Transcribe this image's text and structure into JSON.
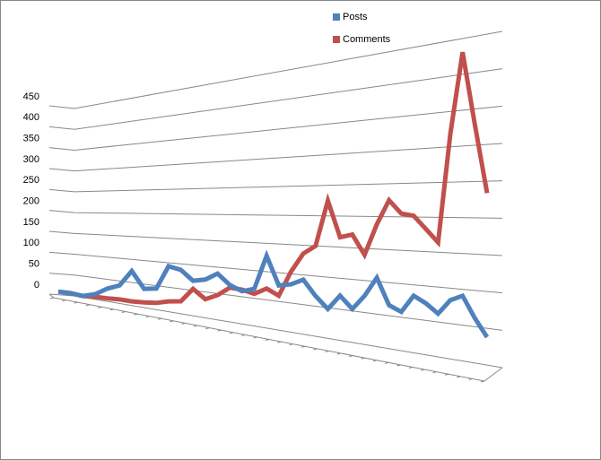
{
  "chart_data": {
    "type": "line",
    "categories": [
      null,
      null,
      null,
      null,
      null,
      null,
      null,
      null,
      null,
      null,
      null,
      null,
      null,
      null,
      null,
      null,
      null,
      null,
      null,
      null,
      null,
      null,
      null,
      null,
      null,
      null,
      null,
      null,
      null,
      null,
      null,
      null,
      null,
      null,
      null,
      null
    ],
    "series": [
      {
        "name": "Posts",
        "color": "#4f81bd",
        "values": [
          4,
          5,
          3,
          12,
          29,
          40,
          75,
          40,
          44,
          93,
          88,
          69,
          74,
          88,
          69,
          60,
          67,
          128,
          78,
          82,
          92,
          67,
          48,
          72,
          53,
          76,
          106,
          66,
          58,
          84,
          75,
          62,
          83,
          91,
          62,
          38
        ]
      },
      {
        "name": "Comments",
        "color": "#c0504d",
        "values": [
          4,
          5,
          3,
          6,
          7,
          9,
          9,
          11,
          14,
          21,
          25,
          53,
          36,
          47,
          64,
          63,
          58,
          70,
          60,
          104,
          136,
          150,
          225,
          166,
          171,
          140,
          188,
          225,
          205,
          202,
          183,
          164,
          318,
          431,
          329,
          234
        ]
      }
    ],
    "ylim": [
      0,
      450
    ],
    "yticks": [
      0,
      50,
      100,
      150,
      200,
      250,
      300,
      350,
      400,
      450
    ],
    "grid": true,
    "legend": "top"
  }
}
